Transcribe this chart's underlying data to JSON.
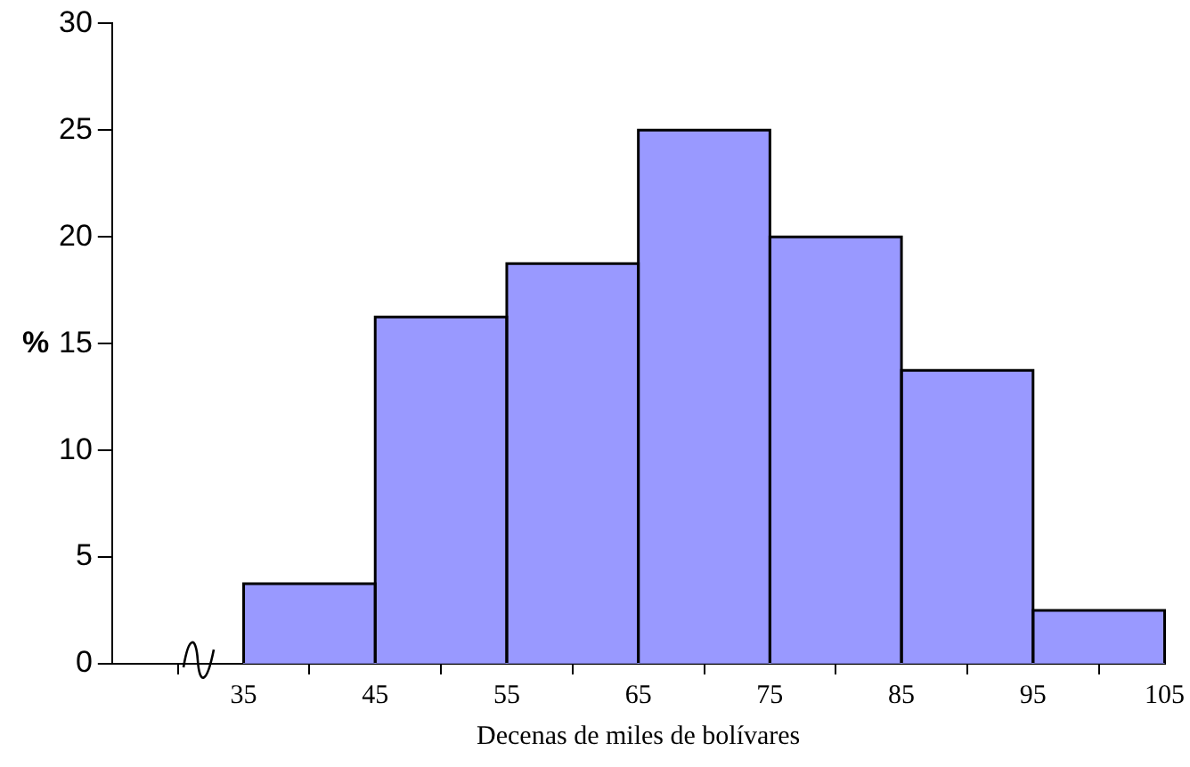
{
  "chart_data": {
    "type": "histogram",
    "xlabel": "Decenas de miles de bolívares",
    "ylabel": "%",
    "bins": [
      35,
      45,
      55,
      65,
      75,
      85,
      95,
      105
    ],
    "values": [
      3.75,
      16.25,
      18.75,
      25,
      20,
      13.75,
      2.5
    ],
    "color": "#9999ff",
    "xlim": [
      25,
      105
    ],
    "xticks": [
      35,
      45,
      55,
      65,
      75,
      85,
      95,
      105
    ],
    "ylim": [
      0,
      30
    ],
    "yticks": [
      0,
      5,
      10,
      15,
      20,
      25,
      30
    ],
    "grid": false,
    "legend": false
  }
}
